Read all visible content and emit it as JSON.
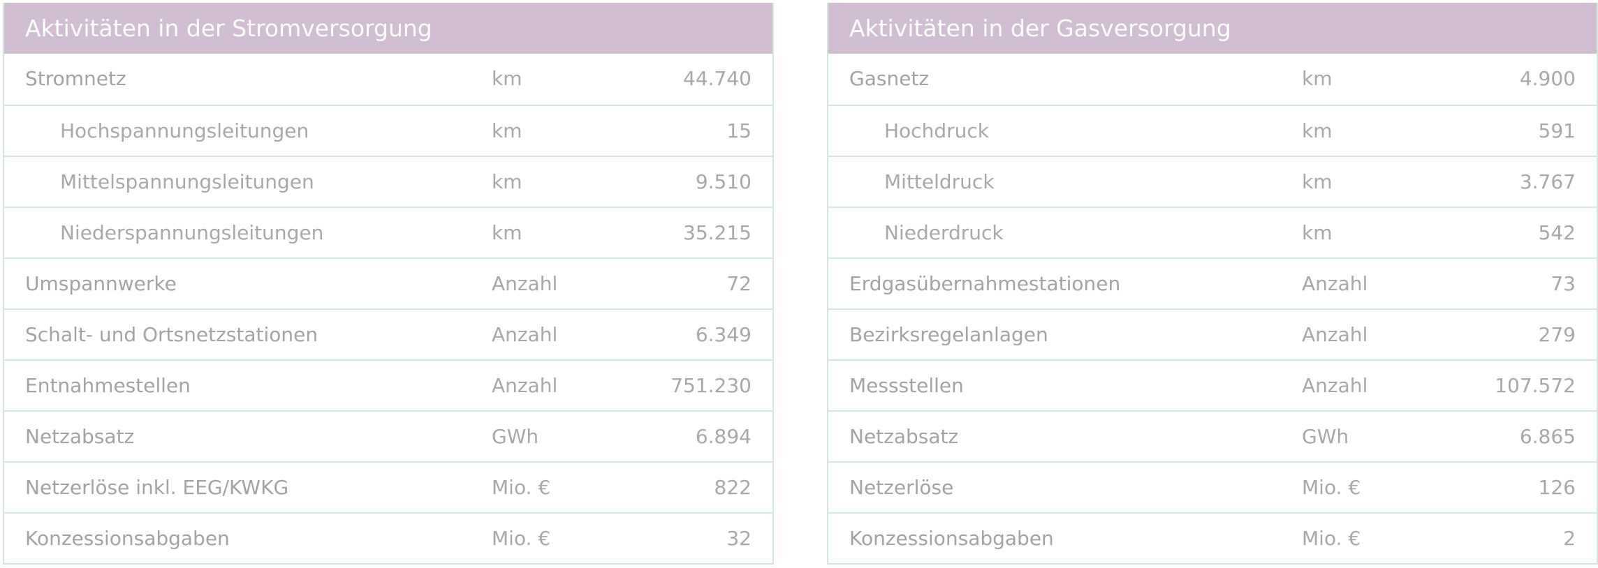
{
  "strom": {
    "title": "Aktivitäten in der Stromversorgung",
    "rows": [
      {
        "label": "Stromnetz",
        "unit": "km",
        "value": "44.740",
        "sub": false
      },
      {
        "label": "Hochspannungsleitungen",
        "unit": "km",
        "value": "15",
        "sub": true
      },
      {
        "label": "Mittelspannungsleitungen",
        "unit": "km",
        "value": "9.510",
        "sub": true
      },
      {
        "label": "Niederspannungsleitungen",
        "unit": "km",
        "value": "35.215",
        "sub": true
      },
      {
        "label": "Umspannwerke",
        "unit": "Anzahl",
        "value": "72",
        "sub": false
      },
      {
        "label": "Schalt- und Ortsnetzstationen",
        "unit": "Anzahl",
        "value": "6.349",
        "sub": false
      },
      {
        "label": "Entnahmestellen",
        "unit": "Anzahl",
        "value": "751.230",
        "sub": false
      },
      {
        "label": "Netzabsatz",
        "unit": "GWh",
        "value": "6.894",
        "sub": false
      },
      {
        "label": "Netzerlöse inkl. EEG/KWKG",
        "unit": "Mio. €",
        "value": "822",
        "sub": false
      },
      {
        "label": "Konzessionsabgaben",
        "unit": "Mio. €",
        "value": "32",
        "sub": false
      }
    ]
  },
  "gas": {
    "title": "Aktivitäten in der Gasversorgung",
    "rows": [
      {
        "label": "Gasnetz",
        "unit": "km",
        "value": "4.900",
        "sub": false
      },
      {
        "label": "Hochdruck",
        "unit": "km",
        "value": "591",
        "sub": true
      },
      {
        "label": "Mitteldruck",
        "unit": "km",
        "value": "3.767",
        "sub": true
      },
      {
        "label": "Niederdruck",
        "unit": "km",
        "value": "542",
        "sub": true
      },
      {
        "label": "Erdgasübernahmestationen",
        "unit": "Anzahl",
        "value": "73",
        "sub": false
      },
      {
        "label": "Bezirksregelanlagen",
        "unit": "Anzahl",
        "value": "279",
        "sub": false
      },
      {
        "label": "Messstellen",
        "unit": "Anzahl",
        "value": "107.572",
        "sub": false
      },
      {
        "label": "Netzabsatz",
        "unit": "GWh",
        "value": "6.865",
        "sub": false
      },
      {
        "label": "Netzerlöse",
        "unit": "Mio. €",
        "value": "126",
        "sub": false
      },
      {
        "label": "Konzessionsabgaben",
        "unit": "Mio. €",
        "value": "2",
        "sub": false
      }
    ]
  }
}
